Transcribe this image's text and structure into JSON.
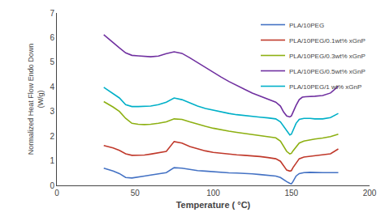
{
  "chart_data": {
    "type": "line",
    "xlabel": "Temperature ( °C)",
    "ylabel": "Normalized Heat Flow Endo Down\n(W/g)",
    "xlim": [
      0,
      200
    ],
    "ylim": [
      0,
      7
    ],
    "xticks": [
      0,
      50,
      100,
      150,
      200
    ],
    "yticks": [
      0,
      1,
      2,
      3,
      4,
      5,
      6,
      7
    ],
    "grid": false,
    "legend": "upper right",
    "series": [
      {
        "name": "PLA/10PEG",
        "color": "#4472c4",
        "x": [
          30,
          33,
          36,
          40,
          44,
          48,
          52,
          56,
          60,
          65,
          70,
          75,
          80,
          85,
          90,
          95,
          100,
          105,
          110,
          115,
          120,
          125,
          130,
          135,
          140,
          143,
          145,
          147,
          149,
          150,
          151,
          153,
          155,
          158,
          162,
          165,
          170,
          175,
          180
        ],
        "values": [
          0.7,
          0.65,
          0.58,
          0.48,
          0.32,
          0.3,
          0.35,
          0.38,
          0.42,
          0.48,
          0.52,
          0.72,
          0.7,
          0.65,
          0.6,
          0.58,
          0.55,
          0.53,
          0.51,
          0.5,
          0.49,
          0.47,
          0.44,
          0.42,
          0.38,
          0.32,
          0.22,
          0.15,
          0.08,
          0.06,
          0.15,
          0.38,
          0.48,
          0.52,
          0.53,
          0.52,
          0.52,
          0.52,
          0.52
        ]
      },
      {
        "name": "PLA/10PEG/0.1wt% xGnP",
        "color": "#c0392b",
        "x": [
          30,
          33,
          36,
          40,
          44,
          48,
          52,
          56,
          60,
          65,
          70,
          75,
          80,
          85,
          90,
          95,
          100,
          105,
          110,
          115,
          120,
          125,
          130,
          135,
          140,
          143,
          145,
          147,
          149,
          150,
          151,
          153,
          155,
          158,
          162,
          165,
          170,
          175,
          180
        ],
        "values": [
          1.62,
          1.58,
          1.52,
          1.42,
          1.28,
          1.22,
          1.22,
          1.23,
          1.27,
          1.32,
          1.38,
          1.78,
          1.72,
          1.58,
          1.48,
          1.4,
          1.34,
          1.3,
          1.27,
          1.24,
          1.22,
          1.2,
          1.17,
          1.13,
          1.08,
          0.98,
          0.78,
          0.62,
          0.58,
          0.6,
          0.72,
          0.92,
          1.08,
          1.15,
          1.18,
          1.2,
          1.22,
          1.28,
          1.48
        ]
      },
      {
        "name": "PLA/10PEG/0.3wt% xGnP",
        "color": "#8db012",
        "x": [
          30,
          33,
          36,
          40,
          44,
          48,
          52,
          56,
          60,
          65,
          70,
          75,
          80,
          85,
          90,
          95,
          100,
          105,
          110,
          115,
          120,
          125,
          130,
          135,
          140,
          143,
          145,
          147,
          149,
          150,
          151,
          153,
          155,
          158,
          162,
          165,
          170,
          175,
          180
        ],
        "values": [
          3.4,
          3.3,
          3.18,
          3.0,
          2.72,
          2.52,
          2.48,
          2.47,
          2.48,
          2.52,
          2.58,
          2.7,
          2.68,
          2.58,
          2.48,
          2.4,
          2.32,
          2.25,
          2.2,
          2.15,
          2.11,
          2.07,
          2.03,
          1.98,
          1.93,
          1.8,
          1.6,
          1.38,
          1.28,
          1.3,
          1.4,
          1.58,
          1.72,
          1.8,
          1.85,
          1.88,
          1.92,
          1.98,
          2.08
        ]
      },
      {
        "name": "PLA/10PEG/0.5wt% xGnP",
        "color": "#7030a0",
        "x": [
          30,
          33,
          36,
          40,
          44,
          48,
          52,
          56,
          60,
          65,
          70,
          75,
          80,
          85,
          90,
          95,
          100,
          105,
          110,
          115,
          120,
          125,
          130,
          135,
          140,
          143,
          145,
          147,
          149,
          150,
          151,
          153,
          155,
          157,
          159,
          162,
          165,
          170,
          175,
          180
        ],
        "values": [
          6.12,
          5.95,
          5.78,
          5.58,
          5.38,
          5.28,
          5.26,
          5.24,
          5.22,
          5.25,
          5.35,
          5.42,
          5.36,
          5.18,
          4.98,
          4.78,
          4.58,
          4.4,
          4.22,
          4.05,
          3.9,
          3.75,
          3.62,
          3.5,
          3.38,
          3.22,
          2.98,
          2.82,
          2.78,
          2.82,
          2.98,
          3.25,
          3.48,
          3.58,
          3.6,
          3.6,
          3.62,
          3.65,
          3.75,
          4.02
        ]
      },
      {
        "name": "PLA/10PEG/1 wt% xGnP",
        "color": "#00b0c8",
        "x": [
          30,
          33,
          36,
          40,
          44,
          48,
          52,
          56,
          60,
          65,
          70,
          75,
          80,
          85,
          90,
          95,
          100,
          105,
          110,
          115,
          120,
          125,
          130,
          135,
          140,
          143,
          145,
          147,
          149,
          150,
          151,
          153,
          155,
          158,
          162,
          165,
          170,
          175,
          180
        ],
        "values": [
          3.98,
          3.85,
          3.72,
          3.55,
          3.28,
          3.2,
          3.2,
          3.2,
          3.22,
          3.28,
          3.38,
          3.55,
          3.48,
          3.35,
          3.22,
          3.12,
          3.05,
          2.98,
          2.92,
          2.87,
          2.83,
          2.8,
          2.77,
          2.74,
          2.7,
          2.58,
          2.4,
          2.2,
          2.05,
          2.08,
          2.25,
          2.52,
          2.68,
          2.72,
          2.72,
          2.7,
          2.7,
          2.75,
          2.92
        ]
      }
    ]
  }
}
